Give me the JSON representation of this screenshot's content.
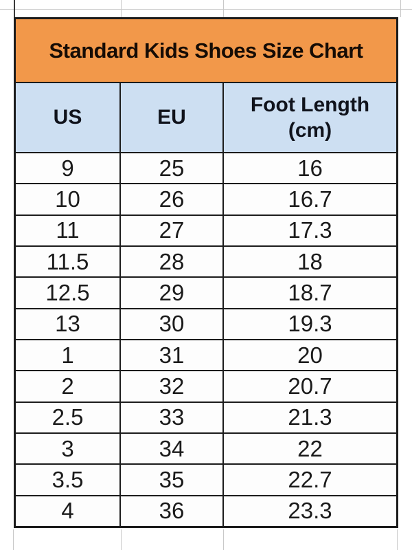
{
  "chart_data": {
    "type": "table",
    "title": "Standard Kids Shoes Size Chart",
    "columns": [
      "US",
      "EU",
      "Foot Length (cm)"
    ],
    "rows": [
      [
        "9",
        "25",
        "16"
      ],
      [
        "10",
        "26",
        "16.7"
      ],
      [
        "11",
        "27",
        "17.3"
      ],
      [
        "11.5",
        "28",
        "18"
      ],
      [
        "12.5",
        "29",
        "18.7"
      ],
      [
        "13",
        "30",
        "19.3"
      ],
      [
        "1",
        "31",
        "20"
      ],
      [
        "2",
        "32",
        "20.7"
      ],
      [
        "2.5",
        "33",
        "21.3"
      ],
      [
        "3",
        "34",
        "22"
      ],
      [
        "3.5",
        "35",
        "22.7"
      ],
      [
        "4",
        "36",
        "23.3"
      ]
    ],
    "layout_hints": "spreadsheet screenshot, centered text, black cell borders, gridlines visible above and below table"
  },
  "table": {
    "title": "Standard Kids Shoes Size Chart",
    "columns": [
      {
        "label": "US",
        "label2": ""
      },
      {
        "label": "EU",
        "label2": ""
      },
      {
        "label": "Foot Length",
        "label2": "(cm)"
      }
    ],
    "rows": [
      [
        "9",
        "25",
        "16"
      ],
      [
        "10",
        "26",
        "16.7"
      ],
      [
        "11",
        "27",
        "17.3"
      ],
      [
        "11.5",
        "28",
        "18"
      ],
      [
        "12.5",
        "29",
        "18.7"
      ],
      [
        "13",
        "30",
        "19.3"
      ],
      [
        "1",
        "31",
        "20"
      ],
      [
        "2",
        "32",
        "20.7"
      ],
      [
        "2.5",
        "33",
        "21.3"
      ],
      [
        "3",
        "34",
        "22"
      ],
      [
        "3.5",
        "35",
        "22.7"
      ],
      [
        "4",
        "36",
        "23.3"
      ]
    ],
    "colors": {
      "title_bg": "#F2984A",
      "header_bg": "#CDDFF2",
      "border": "#1c1c1c",
      "row_bg": "#FDFDFD",
      "gridline": "#c9c9c9"
    }
  }
}
